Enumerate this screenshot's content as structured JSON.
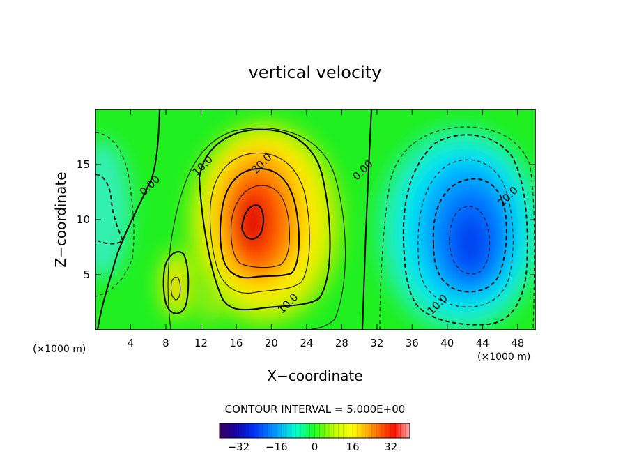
{
  "chart_data": {
    "type": "heatmap",
    "title": "vertical velocity",
    "xlabel": "X−coordinate",
    "ylabel": "Z−coordinate",
    "x_unit": "(×1000 m)",
    "y_unit": "(×1000 m)",
    "xlim": [
      0,
      50
    ],
    "ylim": [
      0,
      20
    ],
    "x_ticks": [
      "4",
      "8",
      "12",
      "16",
      "20",
      "24",
      "28",
      "32",
      "36",
      "40",
      "44",
      "48"
    ],
    "y_ticks": [
      "5",
      "10",
      "15"
    ],
    "contour_interval_label": "CONTOUR INTERVAL = 5.000E+00",
    "contour_interval": 5.0,
    "colorbar": {
      "range": [
        -40,
        40
      ],
      "ticks": [
        "−32",
        "−16",
        "0",
        "16",
        "32"
      ],
      "tick_values": [
        -32,
        -16,
        0,
        16,
        32
      ]
    },
    "features": [
      {
        "name": "updraft",
        "x": 18.5,
        "z": 10.0,
        "max": 40
      },
      {
        "name": "downdraft",
        "x": 42.5,
        "z": 8.5,
        "min": -30
      },
      {
        "name": "weak-updraft",
        "x": 9.2,
        "z": 4.5,
        "max": 12
      }
    ],
    "contour_labels": [
      {
        "text": "0.00",
        "x": 6.3,
        "z": 13.0
      },
      {
        "text": "10.0",
        "x": 12.3,
        "z": 14.8
      },
      {
        "text": "20.0",
        "x": 19.0,
        "z": 15.0
      },
      {
        "text": "10.0",
        "x": 22.0,
        "z": 2.3
      },
      {
        "text": "0.00",
        "x": 30.5,
        "z": 14.4
      },
      {
        "text": "20.0",
        "x": 47.0,
        "z": 12.0
      },
      {
        "text": "10.0",
        "x": 39.0,
        "z": 2.2
      }
    ]
  }
}
